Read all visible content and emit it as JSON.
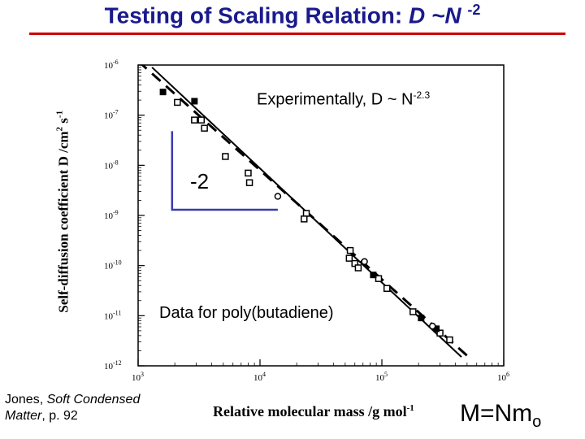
{
  "header": {
    "title_prefix": "Testing of Scaling Relation: ",
    "title_rel": "D ~N ",
    "title_exp": "-2"
  },
  "annotations": {
    "experimental_prefix": "Experimentally, D ~ N",
    "experimental_exp": "-2.3",
    "data_note": "Data for poly(butadiene)",
    "slope": "-2"
  },
  "footer": {
    "cite_author": "Jones, ",
    "cite_book_line1": "Soft Condensed",
    "cite_book_line2": "Matter",
    "cite_page": ", p. 92",
    "mnm_main": "M=Nm",
    "mnm_sub": "o"
  },
  "chart_data": {
    "type": "scatter",
    "xlabel_text": "Relative molecular mass /g mol",
    "xlabel_exp": "-1",
    "ylabel_text": "Self-diffusion coefficient D /cm",
    "ylabel_exp1": "2",
    "ylabel_mid": " s",
    "ylabel_exp2": "-1",
    "x_scale": "log",
    "y_scale": "log",
    "xlim": [
      1000,
      1000000
    ],
    "ylim": [
      1e-12,
      1e-06
    ],
    "x_ticks": [
      {
        "base": "10",
        "exp": "3"
      },
      {
        "base": "10",
        "exp": "4"
      },
      {
        "base": "10",
        "exp": "5"
      },
      {
        "base": "10",
        "exp": "6"
      }
    ],
    "y_ticks": [
      {
        "base": "10",
        "exp": "-6"
      },
      {
        "base": "10",
        "exp": "-7"
      },
      {
        "base": "10",
        "exp": "-8"
      },
      {
        "base": "10",
        "exp": "-9"
      },
      {
        "base": "10",
        "exp": "-10"
      },
      {
        "base": "10",
        "exp": "-11"
      },
      {
        "base": "10",
        "exp": "-12"
      }
    ],
    "grid": false,
    "series": [
      {
        "style": "open-square",
        "points": [
          [
            2100,
            1.8e-07
          ],
          [
            2900,
            8e-08
          ],
          [
            3300,
            8e-08
          ],
          [
            3500,
            5.5e-08
          ],
          [
            5200,
            1.5e-08
          ],
          [
            8000,
            7e-09
          ],
          [
            8200,
            4.5e-09
          ],
          [
            24000,
            1.1e-09
          ],
          [
            23000,
            8.5e-10
          ],
          [
            55000,
            2e-10
          ],
          [
            54000,
            1.4e-10
          ],
          [
            60000,
            1.1e-10
          ],
          [
            64000,
            9e-11
          ],
          [
            94000,
            5.5e-11
          ],
          [
            110000,
            3.5e-11
          ],
          [
            180000,
            1.2e-11
          ],
          [
            300000,
            4.5e-12
          ],
          [
            360000,
            3.3e-12
          ]
        ]
      },
      {
        "style": "filled-square",
        "points": [
          [
            1600,
            2.9e-07
          ],
          [
            2900,
            1.9e-07
          ],
          [
            85000,
            6.5e-11
          ],
          [
            210000,
            9e-12
          ],
          [
            280000,
            5.5e-12
          ]
        ]
      },
      {
        "style": "open-circle",
        "points": [
          [
            14000,
            2.4e-09
          ],
          [
            72000,
            1.2e-10
          ],
          [
            260000,
            6.2e-12
          ]
        ]
      }
    ],
    "fit_lines": [
      {
        "style": "solid",
        "points": [
          [
            1300,
            9e-07
          ],
          [
            450000,
            1.5e-12
          ]
        ]
      },
      {
        "style": "dashed",
        "points": [
          [
            1000,
            1.2e-06
          ],
          [
            500000,
            1.6e-12
          ]
        ]
      }
    ],
    "slope_marker": {
      "x_from": 1900,
      "x_to": 14000,
      "y_top": 4.8e-08,
      "y_bottom": 1.3e-09
    }
  }
}
